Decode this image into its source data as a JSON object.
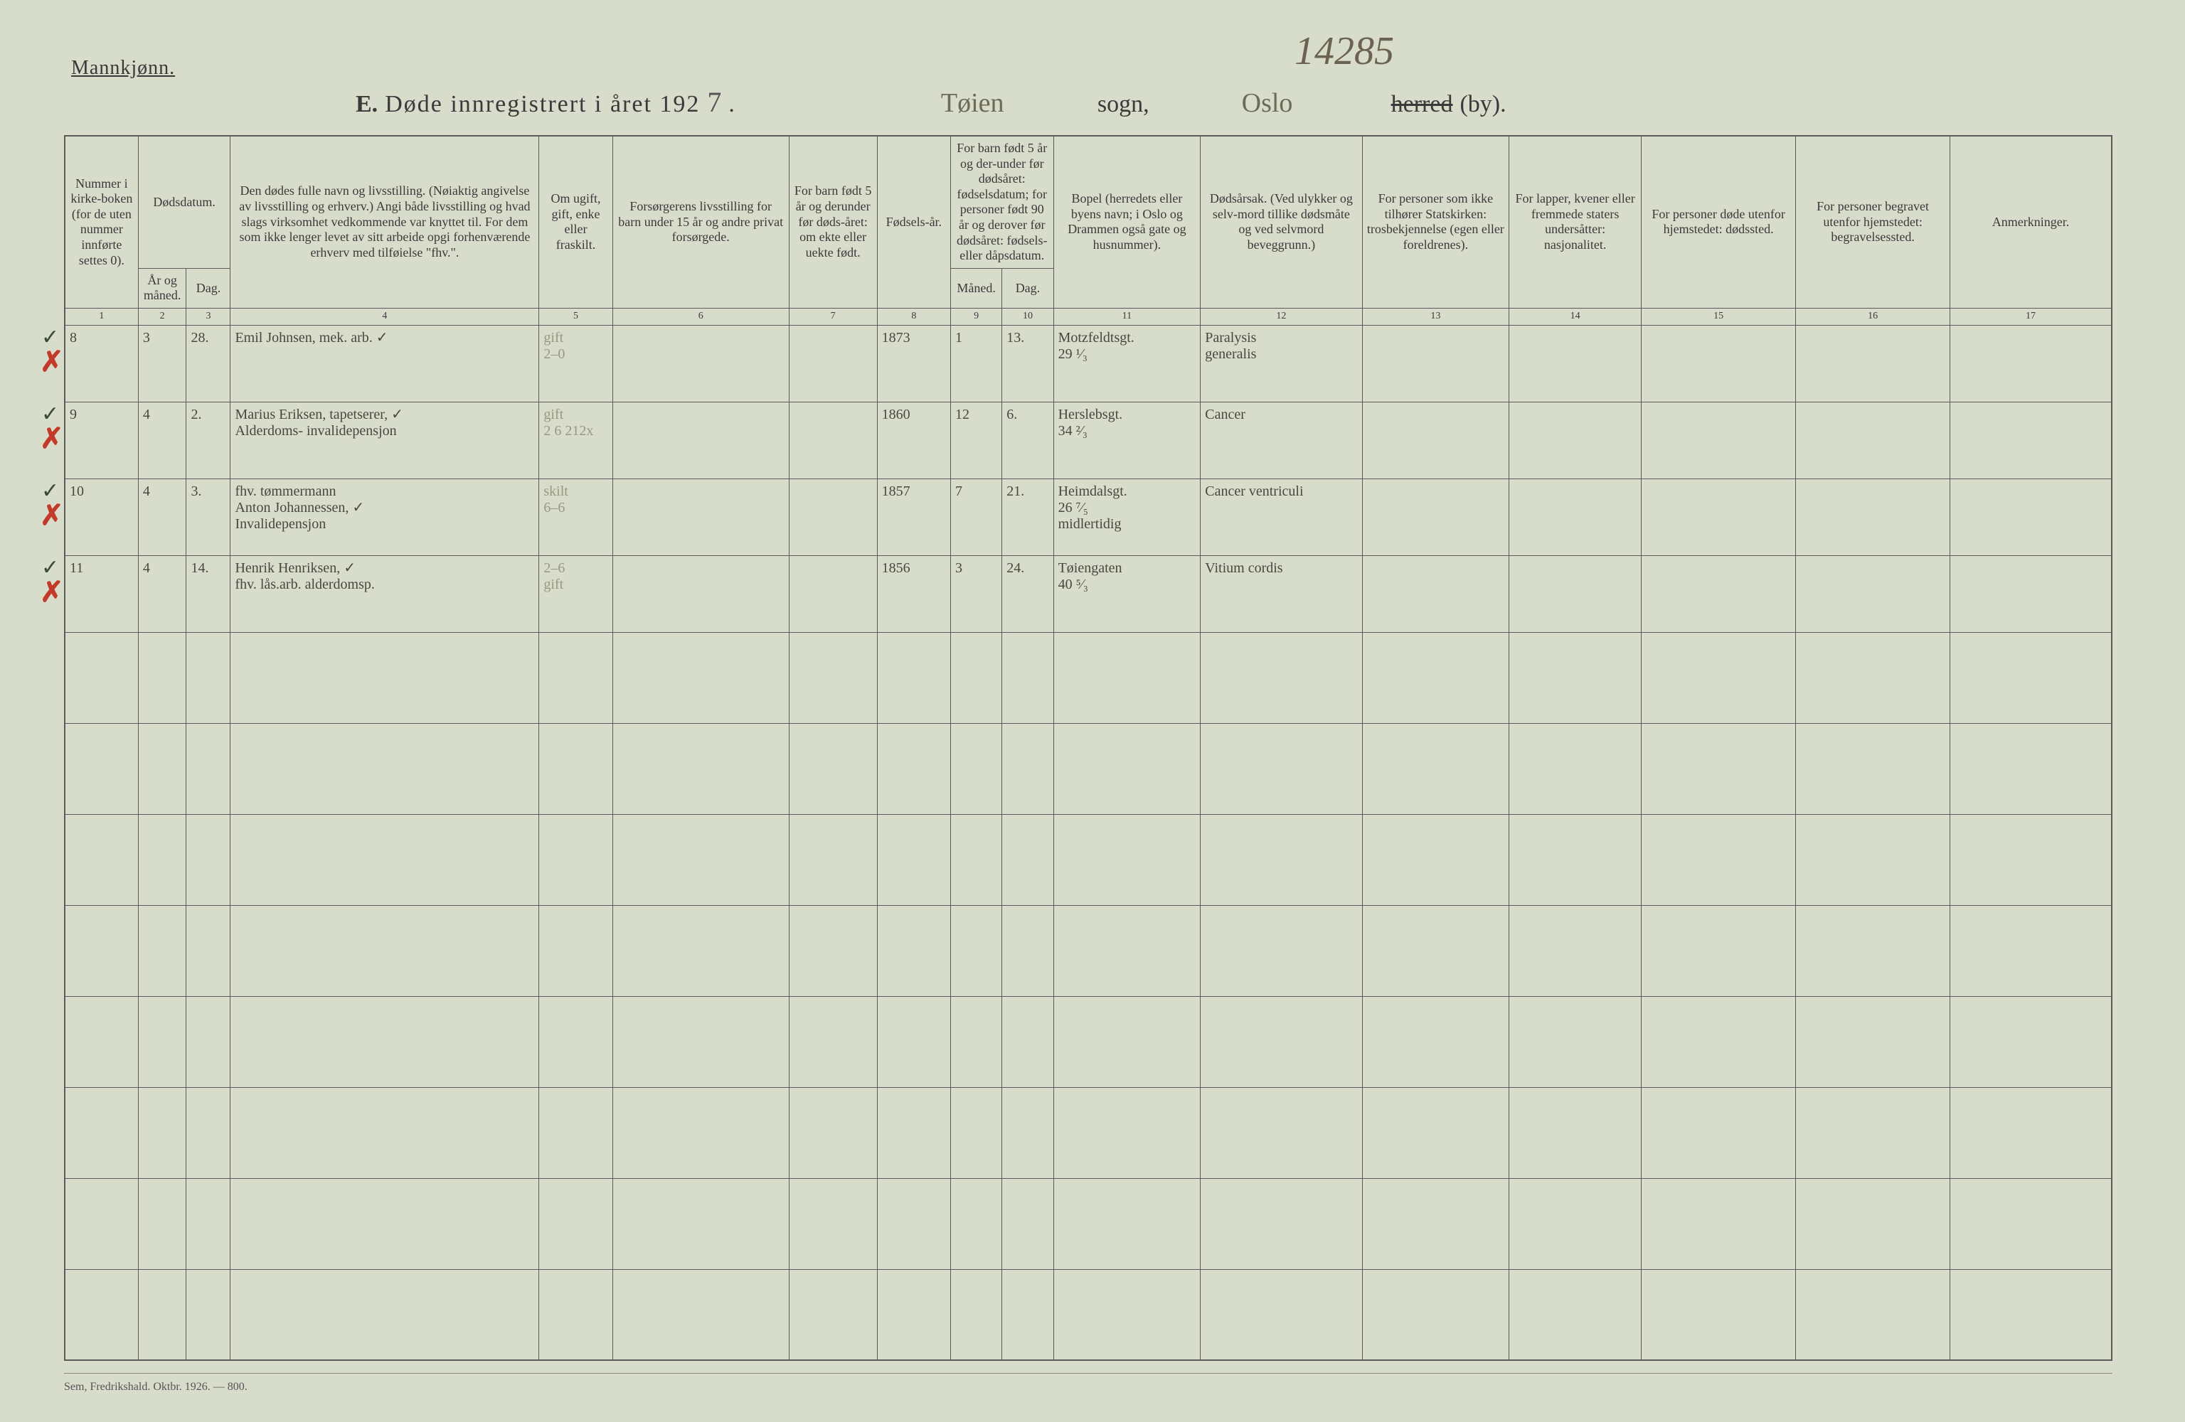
{
  "header": {
    "gender_label": "Mannkjønn.",
    "scribble_number": "14285",
    "title_E": "E.",
    "title_main": "Døde innregistrert i året 192",
    "year_hw": "7",
    "period": ".",
    "sogn_handwritten": "Tøien",
    "sogn_label": "sogn,",
    "city_handwritten": "Oslo",
    "herred_struck": "herred",
    "by_label": "(by)."
  },
  "columns": {
    "1": "Nummer i kirke-boken (for de uten nummer innførte settes 0).",
    "2a": "Dødsdatum.",
    "2": "År og måned.",
    "3": "Dag.",
    "4": "Den dødes fulle navn og livsstilling. (Nøiaktig angivelse av livsstilling og erhverv.) Angi både livsstilling og hvad slags virksomhet vedkommende var knyttet til. For dem som ikke lenger levet av sitt arbeide opgi forhenværende erhverv med tilføielse \"fhv.\".",
    "5": "Om ugift, gift, enke eller fraskilt.",
    "6": "Forsørgerens livsstilling for barn under 15 år og andre privat forsørgede.",
    "7": "For barn født 5 år og derunder før døds-året: om ekte eller uekte født.",
    "8": "Fødsels-år.",
    "9a": "For barn født 5 år og der-under før dødsåret: fødselsdatum; for personer født 90 år og derover før dødsåret: fødsels- eller dåpsdatum.",
    "9": "Måned.",
    "10": "Dag.",
    "11": "Bopel (herredets eller byens navn; i Oslo og Drammen også gate og husnummer).",
    "12": "Dødsårsak. (Ved ulykker og selv-mord tillike dødsmåte og ved selvmord beveggrunn.)",
    "13": "For personer som ikke tilhører Statskirken: trosbekjennelse (egen eller foreldrenes).",
    "14": "For lapper, kvener eller fremmede staters undersåtter: nasjonalitet.",
    "15": "For personer døde utenfor hjemstedet: dødssted.",
    "16": "For personer begravet utenfor hjemstedet: begravelsessted.",
    "17": "Anmerkninger.",
    "nums": [
      "1",
      "2",
      "3",
      "4",
      "5",
      "6",
      "7",
      "8",
      "9",
      "10",
      "11",
      "12",
      "13",
      "14",
      "15",
      "16",
      "17"
    ]
  },
  "rows": [
    {
      "mark_red": "✗",
      "mark_check": "✓",
      "num": "8",
      "aar_mnd": "3",
      "dag": "28.",
      "navn": "Emil Johnsen, mek. arb. ✓",
      "sivil": "gift\n2–0",
      "forsorger": "",
      "ekte": "",
      "faar": "1873",
      "fmnd": "1",
      "fdag": "13.",
      "bopel": "Motzfeldtsgt.\n29 ¹⁄₃",
      "aarsak": "Paralysis\ngeneralis",
      "c13": "",
      "c14": "",
      "c15": "",
      "c16": "",
      "c17": ""
    },
    {
      "mark_red": "✗",
      "mark_check": "✓",
      "num": "9",
      "aar_mnd": "4",
      "dag": "2.",
      "navn": "Marius Eriksen, tapetserer, ✓\nAlderdoms- invalidepensjon",
      "sivil": "gift\n2 6  212x",
      "forsorger": "",
      "ekte": "",
      "faar": "1860",
      "fmnd": "12",
      "fdag": "6.",
      "bopel": "Herslebsgt.\n34 ²⁄₃",
      "aarsak": "Cancer",
      "c13": "",
      "c14": "",
      "c15": "",
      "c16": "",
      "c17": ""
    },
    {
      "mark_red": "✗",
      "mark_check": "✓",
      "num": "10",
      "aar_mnd": "4",
      "dag": "3.",
      "navn": "fhv. tømmermann\nAnton Johannessen,    ✓\nInvalidepensjon",
      "sivil": "skilt\n6–6",
      "forsorger": "",
      "ekte": "",
      "faar": "1857",
      "fmnd": "7",
      "fdag": "21.",
      "bopel": "Heimdalsgt.\n26 ⁷⁄₅\nmidlertidig",
      "aarsak": "Cancer ventriculi",
      "c13": "",
      "c14": "",
      "c15": "",
      "c16": "",
      "c17": ""
    },
    {
      "mark_red": "✗",
      "mark_check": "✓",
      "num": "11",
      "aar_mnd": "4",
      "dag": "14.",
      "navn": "Henrik Henriksen,    ✓\nfhv. lås.arb. alderdomsp.",
      "sivil": "2–6\ngift",
      "forsorger": "",
      "ekte": "",
      "faar": "1856",
      "fmnd": "3",
      "fdag": "24.",
      "bopel": "Tøiengaten\n40 ⁵⁄₃",
      "aarsak": "Vitium cordis",
      "c13": "",
      "c14": "",
      "c15": "",
      "c16": "",
      "c17": ""
    }
  ],
  "layout": {
    "empty_rows": 8
  },
  "footer": "Sem, Fredrikshald. Oktbr. 1926. — 800."
}
